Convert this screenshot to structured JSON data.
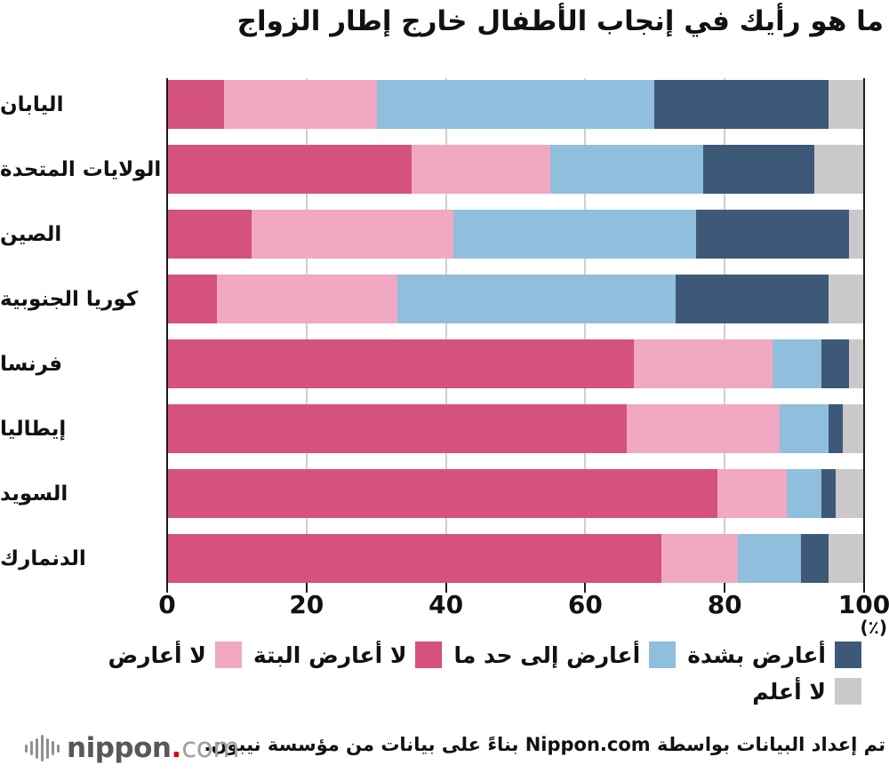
{
  "title": "ما هو رأيك في إنجاب الأطفال خارج إطار الزواج",
  "chart_data": {
    "type": "bar",
    "stacked": true,
    "orientation": "horizontal",
    "categories": [
      "اليابان",
      "الولايات المتحدة",
      "الصين",
      "كوريا الجنوبية",
      "فرنسا",
      "إيطاليا",
      "السويد",
      "الدنمارك"
    ],
    "series": [
      {
        "name": "لا أعارض البتة",
        "color": "#d4527b",
        "values": [
          8,
          35,
          12,
          7,
          67,
          66,
          79,
          71
        ]
      },
      {
        "name": "لا أعارض",
        "color": "#f1a8c2",
        "values": [
          22,
          20,
          29,
          26,
          20,
          22,
          10,
          11
        ]
      },
      {
        "name": "أعارض إلى حد ما",
        "color": "#90bedd",
        "values": [
          40,
          22,
          35,
          40,
          7,
          7,
          5,
          9
        ]
      },
      {
        "name": "أعارض بشدة",
        "color": "#3e5878",
        "values": [
          25,
          16,
          22,
          22,
          4,
          2,
          2,
          4
        ]
      },
      {
        "name": "لا أعلم",
        "color": "#c9c9c9",
        "values": [
          5,
          7,
          2,
          5,
          2,
          3,
          4,
          5
        ]
      }
    ],
    "xlim": [
      0,
      100
    ],
    "xticks": [
      "0",
      "20",
      "40",
      "60",
      "80",
      "100"
    ],
    "unit_label": "(٪)",
    "grid": true,
    "legend_rows": [
      [
        3,
        2,
        0,
        1
      ],
      [
        4
      ]
    ],
    "legend_position": "bottom-right"
  },
  "footer": {
    "credit": "تم إعداد البيانات بواسطة Nippon.com بناءً على بيانات من مؤسسة نيبون.",
    "logo": {
      "nippon": "nippon",
      "dot": ".",
      "com": "com"
    },
    "logo_wave_icon": "waveform-icon"
  }
}
